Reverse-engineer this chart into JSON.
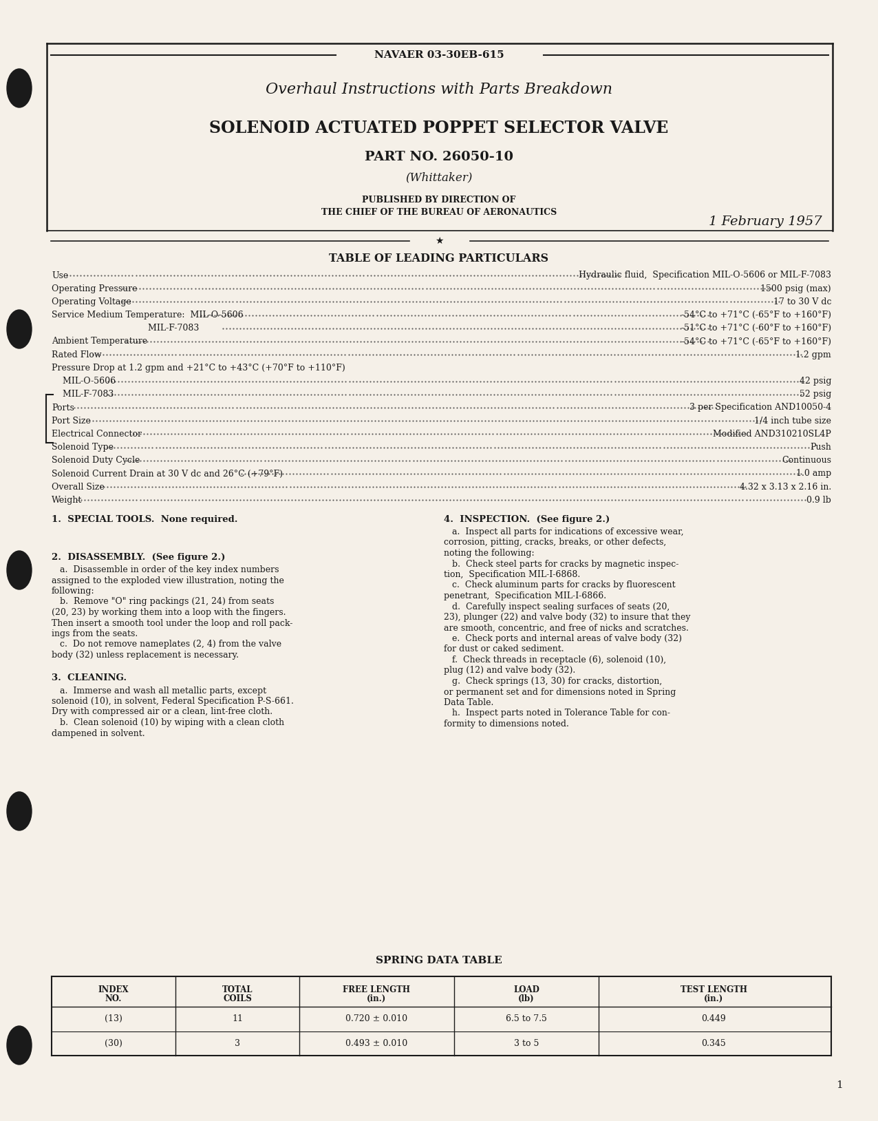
{
  "bg_color": "#f5f0e8",
  "text_color": "#1a1a1a",
  "header_text": "NAVAER 03-30EB-615",
  "title1": "Overhaul Instructions with Parts Breakdown",
  "title2": "SOLENOID ACTUATED POPPET SELECTOR VALVE",
  "title3": "PART NO. 26050-10",
  "title4": "(Whittaker)",
  "published_line1": "PUBLISHED BY DIRECTION OF",
  "published_line2": "THE CHIEF OF THE BUREAU OF AERONAUTICS",
  "date": "1 February 1957",
  "table_heading": "TABLE OF LEADING PARTICULARS",
  "particulars": [
    [
      "Use",
      "Hydraulic fluid,  Specification MIL-O-5606 or MIL-F-7083"
    ],
    [
      "Operating Pressure",
      "1500 psig (max)"
    ],
    [
      "Operating Voltage",
      "17 to 30 V dc"
    ],
    [
      "Service Medium Temperature:  MIL-O-5606",
      "-54°C to +71°C (-65°F to +160°F)"
    ],
    [
      "                                   MIL-F-7083",
      "-51°C to +71°C (-60°F to +160°F)"
    ],
    [
      "Ambient Temperature",
      "-54°C to +71°C (-65°F to +160°F)"
    ],
    [
      "Rated Flow",
      "1.2 gpm"
    ],
    [
      "Pressure Drop at 1.2 gpm and +21°C to +43°C (+70°F to +110°F)",
      ""
    ],
    [
      "    MIL-O-5606",
      "42 psig"
    ],
    [
      "    MIL-F-7083",
      "52 psig"
    ],
    [
      "Ports",
      "3 per Specification AND10050-4"
    ],
    [
      "Port Size",
      "1/4 inch tube size"
    ],
    [
      "Electrical Connector",
      "Modified AND310210SL4P"
    ],
    [
      "Solenoid Type",
      "Push"
    ],
    [
      "Solenoid Duty Cycle",
      "Continuous"
    ],
    [
      "Solenoid Current Drain at 30 V dc and 26°C (+79°F)",
      "1.0 amp"
    ],
    [
      "Overall Size",
      "4.32 x 3.13 x 2.16 in."
    ],
    [
      "Weight",
      "0.9 lb"
    ]
  ],
  "section1_title": "1.  SPECIAL TOOLS.  None required.",
  "section2_title": "2.  DISASSEMBLY.  (See figure 2.)",
  "section2_lines": [
    "   a.  Disassemble in order of the key index numbers",
    "assigned to the exploded view illustration, noting the",
    "following:",
    "   b.  Remove \"O\" ring packings (21, 24) from seats",
    "(20, 23) by working them into a loop with the fingers.",
    "Then insert a smooth tool under the loop and roll pack-",
    "ings from the seats.",
    "   c.  Do not remove nameplates (2, 4) from the valve",
    "body (32) unless replacement is necessary."
  ],
  "section3_title": "3.  CLEANING.",
  "section3_lines": [
    "   a.  Immerse and wash all metallic parts, except",
    "solenoid (10), in solvent, Federal Specification P-S-661.",
    "Dry with compressed air or a clean, lint-free cloth.",
    "   b.  Clean solenoid (10) by wiping with a clean cloth",
    "dampened in solvent."
  ],
  "section4_title": "4.  INSPECTION.  (See figure 2.)",
  "section4_lines": [
    "   a.  Inspect all parts for indications of excessive wear,",
    "corrosion, pitting, cracks, breaks, or other defects,",
    "noting the following:",
    "   b.  Check steel parts for cracks by magnetic inspec-",
    "tion,  Specification MIL-I-6868.",
    "   c.  Check aluminum parts for cracks by fluorescent",
    "penetrant,  Specification MIL-I-6866.",
    "   d.  Carefully inspect sealing surfaces of seats (20,",
    "23), plunger (22) and valve body (32) to insure that they",
    "are smooth, concentric, and free of nicks and scratches.",
    "   e.  Check ports and internal areas of valve body (32)",
    "for dust or caked sediment.",
    "   f.  Check threads in receptacle (6), solenoid (10),",
    "plug (12) and valve body (32).",
    "   g.  Check springs (13, 30) for cracks, distortion,",
    "or permanent set and for dimensions noted in Spring",
    "Data Table.",
    "   h.  Inspect parts noted in Tolerance Table for con-",
    "formity to dimensions noted."
  ],
  "spring_table_headers": [
    "INDEX\nNO.",
    "TOTAL\nCOILS",
    "FREE LENGTH\n(in.)",
    "LOAD\n(lb)",
    "TEST LENGTH\n(in.)"
  ],
  "spring_table_rows": [
    [
      "(13)",
      "11",
      "0.720 ± 0.010",
      "6.5 to 7.5",
      "0.449"
    ],
    [
      "(30)",
      "3",
      "0.493 ± 0.010",
      "3 to 5",
      "0.345"
    ]
  ],
  "spring_table_title": "SPRING DATA TABLE",
  "page_number": "1",
  "col_positions": [
    75,
    255,
    435,
    660,
    870,
    1205
  ],
  "hole_positions": [
    1500,
    1150,
    800,
    450,
    110
  ]
}
